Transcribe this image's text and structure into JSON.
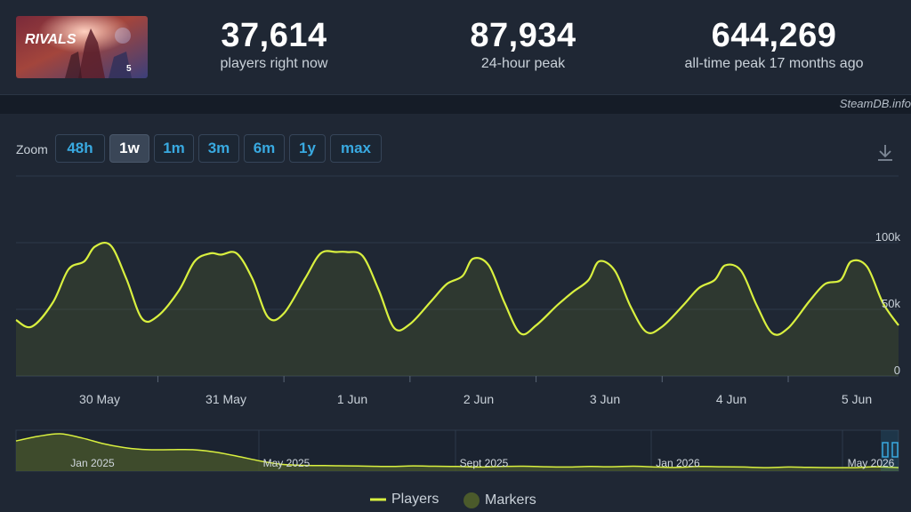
{
  "header": {
    "game": {
      "logo_text": "RIVALS",
      "badge_text": "5"
    },
    "stats": [
      {
        "value": "37,614",
        "label": "players right now"
      },
      {
        "value": "87,934",
        "label": "24-hour peak"
      },
      {
        "value": "644,269",
        "label": "all-time peak 17 months ago"
      }
    ],
    "credit": "SteamDB.info"
  },
  "zoom": {
    "label": "Zoom",
    "buttons": [
      "48h",
      "1w",
      "1m",
      "3m",
      "6m",
      "1y",
      "max"
    ],
    "active": "1w"
  },
  "icons": {
    "download": "download-icon"
  },
  "colors": {
    "line": "#d9f03f",
    "fill": "#4b5a2b",
    "background": "#1f2734",
    "accent": "#39a9e0"
  },
  "chart_data": {
    "type": "line",
    "y_ticks": [
      "0",
      "50k",
      "100k"
    ],
    "x_tick_labels": [
      "30 May",
      "31 May",
      "1 Jun",
      "2 Jun",
      "3 Jun",
      "4 Jun",
      "5 Jun"
    ],
    "ylim": [
      0,
      100000
    ],
    "series": [
      {
        "name": "Players",
        "x": [
          "2025-05-29 09:00",
          "2025-05-29 12:00",
          "2025-05-29 16:00",
          "2025-05-29 19:00",
          "2025-05-29 22:00",
          "2025-05-30 00:00",
          "2025-05-30 03:00",
          "2025-05-30 06:00",
          "2025-05-30 09:00",
          "2025-05-30 12:00",
          "2025-05-30 16:00",
          "2025-05-30 19:00",
          "2025-05-30 22:00",
          "2025-05-31 00:00",
          "2025-05-31 03:00",
          "2025-05-31 06:00",
          "2025-05-31 09:00",
          "2025-05-31 12:00",
          "2025-05-31 16:00",
          "2025-05-31 19:00",
          "2025-05-31 22:00",
          "2025-06-01 00:00",
          "2025-06-01 03:00",
          "2025-06-01 06:00",
          "2025-06-01 09:00",
          "2025-06-01 12:00",
          "2025-06-01 16:00",
          "2025-06-01 19:00",
          "2025-06-01 22:00",
          "2025-06-02 00:00",
          "2025-06-02 03:00",
          "2025-06-02 06:00",
          "2025-06-02 09:00",
          "2025-06-02 12:00",
          "2025-06-02 16:00",
          "2025-06-02 19:00",
          "2025-06-02 22:00",
          "2025-06-03 00:00",
          "2025-06-03 03:00",
          "2025-06-03 06:00",
          "2025-06-03 09:00",
          "2025-06-03 12:00",
          "2025-06-03 16:00",
          "2025-06-03 19:00",
          "2025-06-03 22:00",
          "2025-06-04 00:00",
          "2025-06-04 03:00",
          "2025-06-04 06:00",
          "2025-06-04 09:00",
          "2025-06-04 12:00",
          "2025-06-04 16:00",
          "2025-06-04 19:00",
          "2025-06-04 22:00",
          "2025-06-05 00:00",
          "2025-06-05 03:00",
          "2025-06-05 06:00",
          "2025-06-05 09:00"
        ],
        "values": [
          42000,
          37000,
          55000,
          80000,
          86000,
          97000,
          98000,
          73000,
          43000,
          45000,
          64000,
          86000,
          92000,
          91000,
          92000,
          73000,
          44000,
          47000,
          73000,
          92000,
          93000,
          93000,
          90000,
          65000,
          36000,
          39000,
          56000,
          69000,
          75000,
          88000,
          83000,
          55000,
          32000,
          38000,
          53000,
          63000,
          72000,
          86000,
          79000,
          52000,
          33000,
          37000,
          53000,
          66000,
          72000,
          83000,
          79000,
          53000,
          32000,
          36000,
          56000,
          69000,
          72000,
          86000,
          82000,
          55000,
          38000
        ]
      }
    ]
  },
  "navigator": {
    "labels": [
      "Jan 2025",
      "May 2025",
      "Sept 2025",
      "Jan 2026",
      "May 2026"
    ],
    "values": [
      520000,
      600000,
      644269,
      570000,
      470000,
      400000,
      370000,
      370000,
      370000,
      330000,
      260000,
      180000,
      120000,
      100000,
      95000,
      90000,
      85000,
      80000,
      90000,
      85000,
      80000,
      70000,
      80000,
      85000,
      75000,
      70000,
      80000,
      75000,
      85000,
      70000,
      65000,
      80000,
      75000,
      70000,
      60000,
      70000,
      65000,
      60000,
      60000,
      75000,
      60000
    ]
  },
  "legend": {
    "players": "Players",
    "markers": "Markers"
  }
}
